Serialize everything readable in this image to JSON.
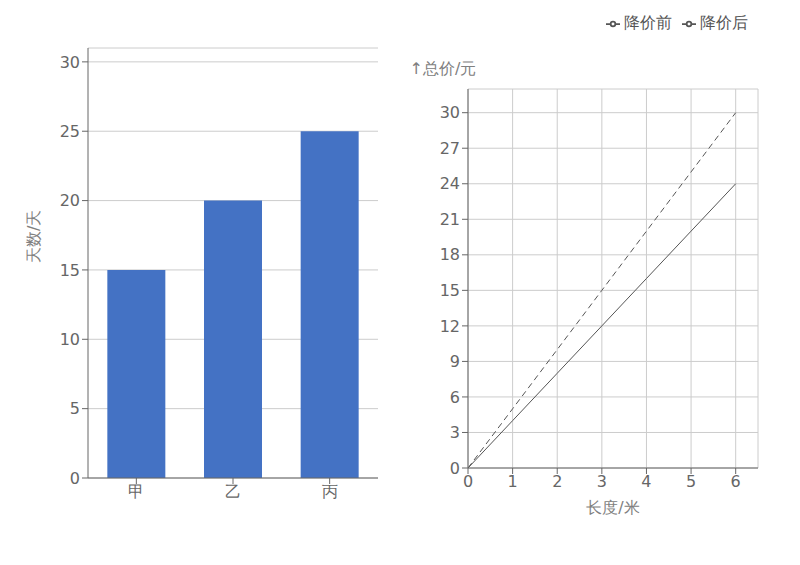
{
  "chart_data": [
    {
      "type": "bar",
      "categories": [
        "甲",
        "乙",
        "丙"
      ],
      "values": [
        15,
        20,
        25
      ],
      "color": "#4472c4",
      "ylabel": "天数/天",
      "ylim": [
        0,
        31
      ],
      "yticks": [
        0,
        5,
        10,
        15,
        20,
        25,
        30
      ],
      "grid": true
    },
    {
      "type": "line",
      "x": [
        0,
        1,
        2,
        3,
        4,
        5,
        6
      ],
      "series": [
        {
          "name": "降价前",
          "color": "#555555",
          "line_style": "dashed",
          "values": [
            0,
            5,
            10,
            15,
            20,
            25,
            30
          ]
        },
        {
          "name": "降价后",
          "color": "#555555",
          "line_style": "solid",
          "values": [
            0,
            4,
            8,
            12,
            16,
            20,
            24
          ]
        }
      ],
      "xlabel": "长度/米",
      "ylabel": "↑总价/元",
      "xlim": [
        0,
        6.5
      ],
      "xticks": [
        0,
        1,
        2,
        3,
        4,
        5,
        6
      ],
      "ylim": [
        0,
        32
      ],
      "yticks": [
        0,
        3,
        6,
        9,
        12,
        15,
        18,
        21,
        24,
        27,
        30
      ],
      "grid": true,
      "legend": "top"
    }
  ]
}
